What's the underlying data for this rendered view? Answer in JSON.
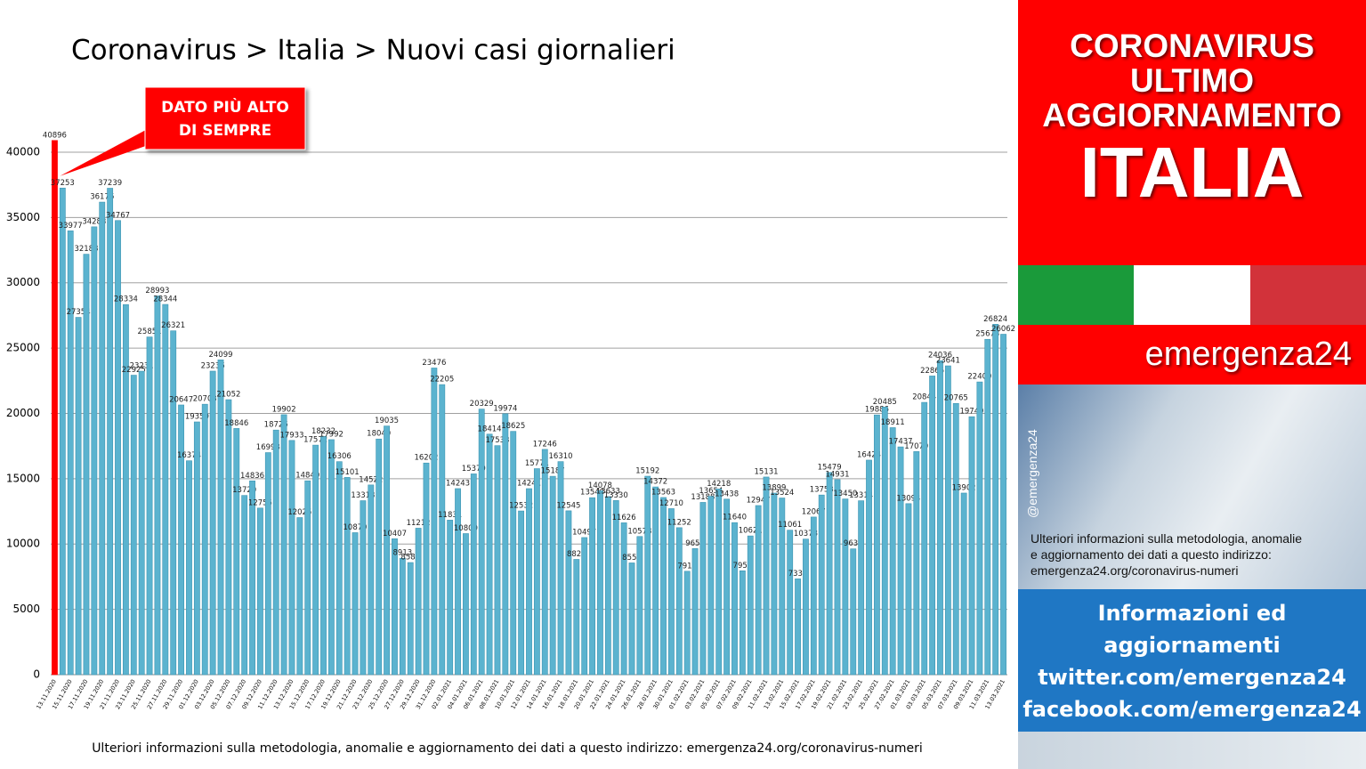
{
  "chart_data": {
    "type": "bar",
    "title": "Coronavirus > Italia > Nuovi casi giornalieri",
    "note": "Ulteriori informazioni sulla metodologia, anomalie e aggiornamento dei dati a questo indirizzo: emergenza24.org/coronavirus-numeri",
    "annotation": {
      "lines": [
        "DATO PIÙ ALTO",
        "DI SEMPRE"
      ],
      "category": "13.11.2020",
      "color": "#ff0000"
    },
    "color": "#5bb3cf",
    "categories": [
      "13.11.2020",
      null,
      "15.11.2020",
      null,
      "17.11.2020",
      null,
      "19.11.2020",
      null,
      "21.11.2020",
      null,
      "23.11.2020",
      null,
      "25.11.2020",
      null,
      "27.11.2020",
      null,
      "29.11.2020",
      null,
      "01.12.2020",
      null,
      "03.12.2020",
      null,
      "05.12.2020",
      null,
      "07.12.2020",
      null,
      "09.12.2020",
      null,
      "11.12.2020",
      null,
      "13.12.2020",
      null,
      "15.12.2020",
      null,
      "17.12.2020",
      null,
      "19.12.2020",
      null,
      "21.12.2020",
      null,
      "23.12.2020",
      null,
      "25.12.2020",
      null,
      "27.12.2020",
      null,
      "29.12.2020",
      null,
      "31.12.2020",
      null,
      "02.01.2021",
      null,
      "04.01.2021",
      null,
      "06.01.2021",
      null,
      "08.01.2021",
      null,
      "10.01.2021",
      null,
      "12.01.2021",
      null,
      "14.01.2021",
      null,
      "16.01.2021",
      null,
      "18.01.2021",
      null,
      "20.01.2021",
      null,
      "22.01.2021",
      null,
      "24.01.2021",
      null,
      "26.01.2021",
      null,
      "28.01.2021",
      null,
      "30.01.2021",
      null,
      "01.02.2021",
      null,
      "03.02.2021",
      null,
      "05.02.2021",
      null,
      "07.02.2021",
      null,
      "09.02.2021",
      null,
      "11.02.2021",
      null,
      "13.02.2021",
      null,
      "15.02.2021",
      null,
      "17.02.2021",
      null,
      "19.02.2021",
      null,
      "21.02.2021",
      null,
      "23.02.2021",
      null,
      "25.02.2021",
      null,
      "27.02.2021",
      null,
      "01.03.2021",
      null,
      "03.03.2021",
      null,
      "05.03.2021",
      null,
      "07.03.2021",
      null,
      "09.03.2021",
      null,
      "11.03.2021",
      null,
      "13.03.2021"
    ],
    "values": [
      40896,
      37253,
      33977,
      27354,
      32188,
      34283,
      36176,
      37239,
      34767,
      28334,
      22925,
      23231,
      25851,
      28993,
      28344,
      26321,
      20647,
      16374,
      19350,
      20703,
      23236,
      24099,
      21052,
      18846,
      13720,
      14836,
      12755,
      16998,
      18726,
      19902,
      17933,
      12025,
      14840,
      17572,
      18232,
      17992,
      16306,
      15101,
      10870,
      13318,
      14522,
      18040,
      19035,
      10407,
      8913,
      8583,
      11212,
      16202,
      23476,
      22205,
      11831,
      14243,
      10800,
      15370,
      20329,
      18414,
      17533,
      19974,
      18625,
      12532,
      14241,
      15771,
      17246,
      15187,
      16310,
      12545,
      8824,
      10497,
      13548,
      14078,
      13633,
      13330,
      11626,
      8555,
      10578,
      15192,
      14372,
      13563,
      12710,
      11252,
      7916,
      9653,
      13188,
      13654,
      14218,
      13438,
      11640,
      7952,
      10621,
      12947,
      15131,
      13899,
      13524,
      11061,
      7333,
      10378,
      12067,
      13753,
      15479,
      14931,
      13450,
      9630,
      13314,
      16424,
      19886,
      20485,
      18911,
      17437,
      13094,
      17079,
      20844,
      22865,
      24036,
      23641,
      20765,
      13902,
      19749,
      22409,
      25673,
      26824,
      26062
    ],
    "ylim": [
      0,
      42000
    ],
    "yticks": [
      0,
      5000,
      10000,
      15000,
      20000,
      25000,
      30000,
      35000,
      40000
    ],
    "grid": true
  },
  "sidebar": {
    "headline": [
      "CORONAVIRUS",
      "ULTIMO",
      "AGGIORNAMENTO"
    ],
    "country": "ITALIA",
    "brand": "emergenza24",
    "handle": "@emergenza24",
    "info": [
      "Ulteriori informazioni sulla metodologia, anomalie",
      "e aggiornamento dei dati a questo indirizzo:",
      "emergenza24.org/coronavirus-numeri"
    ],
    "links": [
      "Informazioni ed",
      "aggiornamenti",
      "twitter.com/emergenza24",
      "facebook.com/emergenza24"
    ]
  }
}
